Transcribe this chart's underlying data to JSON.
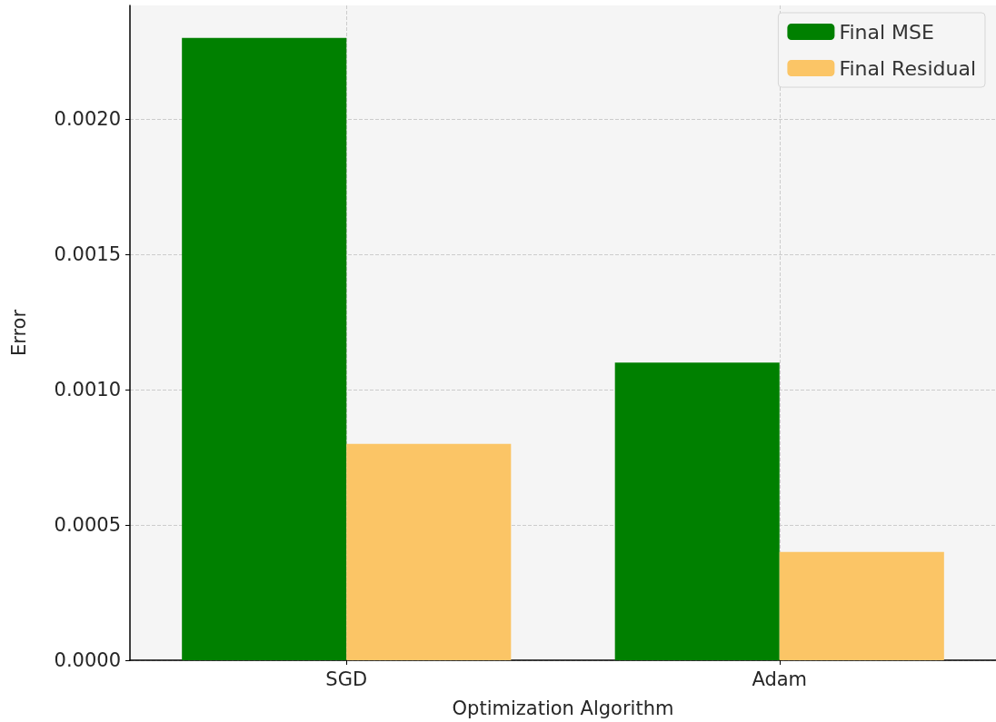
{
  "chart_data": {
    "type": "bar",
    "xlabel": "Optimization Algorithm",
    "ylabel": "Error",
    "categories": [
      "SGD",
      "Adam"
    ],
    "series": [
      {
        "name": "Final MSE",
        "color": "#008000",
        "values": [
          0.0023,
          0.0011
        ]
      },
      {
        "name": "Final Residual",
        "color": "#fbc566",
        "values": [
          0.0008,
          0.0004
        ]
      }
    ],
    "ylim": [
      0,
      0.00242
    ],
    "yticks": [
      {
        "value": 0,
        "label": "0.0000"
      },
      {
        "value": 0.0005,
        "label": "0.0005"
      },
      {
        "value": 0.001,
        "label": "0.0010"
      },
      {
        "value": 0.0015,
        "label": "0.0015"
      },
      {
        "value": 0.002,
        "label": "0.0020"
      }
    ],
    "grid": true,
    "legend": "top right"
  }
}
